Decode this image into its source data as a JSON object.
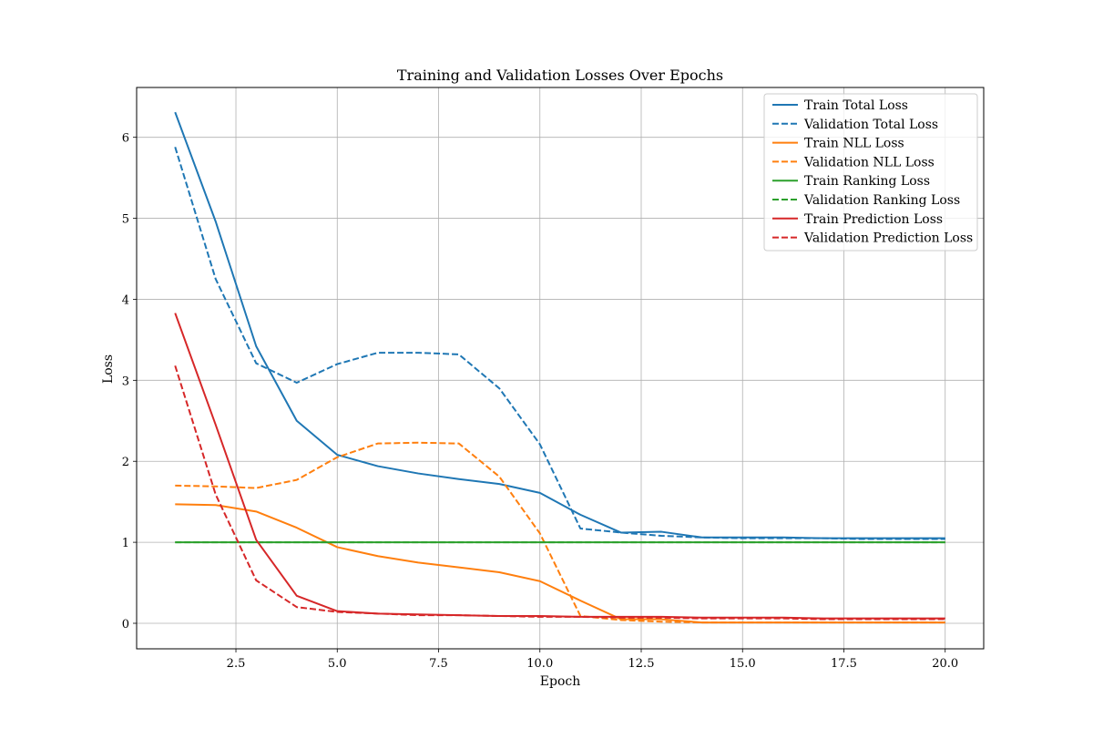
{
  "chart_data": {
    "type": "line",
    "title": "Training and Validation Losses Over Epochs",
    "xlabel": "Epoch",
    "ylabel": "Loss",
    "xlim": [
      0.05,
      20.95
    ],
    "ylim": [
      -0.315,
      6.615
    ],
    "xticks": [
      2.5,
      5.0,
      7.5,
      10.0,
      12.5,
      15.0,
      17.5,
      20.0
    ],
    "xtick_labels": [
      "2.5",
      "5.0",
      "7.5",
      "10.0",
      "12.5",
      "15.0",
      "17.5",
      "20.0"
    ],
    "yticks": [
      0,
      1,
      2,
      3,
      4,
      5,
      6
    ],
    "ytick_labels": [
      "0",
      "1",
      "2",
      "3",
      "4",
      "5",
      "6"
    ],
    "grid": true,
    "legend_position": "top-right",
    "x": [
      1,
      2,
      3,
      4,
      5,
      6,
      7,
      8,
      9,
      10,
      11,
      12,
      13,
      14,
      15,
      16,
      17,
      18,
      19,
      20
    ],
    "series": [
      {
        "name": "Train Total Loss",
        "color": "#1f77b4",
        "style": "solid",
        "values": [
          6.31,
          4.96,
          3.42,
          2.5,
          2.08,
          1.94,
          1.85,
          1.78,
          1.72,
          1.61,
          1.34,
          1.12,
          1.13,
          1.06,
          1.06,
          1.06,
          1.05,
          1.05,
          1.05,
          1.05
        ]
      },
      {
        "name": "Validation Total Loss",
        "color": "#1f77b4",
        "style": "dashed",
        "values": [
          5.88,
          4.25,
          3.21,
          2.97,
          3.2,
          3.34,
          3.34,
          3.32,
          2.9,
          2.21,
          1.17,
          1.12,
          1.08,
          1.06,
          1.05,
          1.05,
          1.05,
          1.04,
          1.04,
          1.04
        ]
      },
      {
        "name": "Train NLL Loss",
        "color": "#ff7f0e",
        "style": "solid",
        "values": [
          1.47,
          1.46,
          1.38,
          1.18,
          0.94,
          0.83,
          0.75,
          0.69,
          0.63,
          0.52,
          0.28,
          0.05,
          0.05,
          0.01,
          0.01,
          0.01,
          0.01,
          0.01,
          0.01,
          0.01
        ]
      },
      {
        "name": "Validation NLL Loss",
        "color": "#ff7f0e",
        "style": "dashed",
        "values": [
          1.7,
          1.69,
          1.67,
          1.77,
          2.05,
          2.22,
          2.23,
          2.22,
          1.81,
          1.11,
          0.09,
          0.04,
          0.02,
          0.01,
          0.01,
          0.01,
          0.01,
          0.01,
          0.01,
          0.01
        ]
      },
      {
        "name": "Train Ranking Loss",
        "color": "#2ca02c",
        "style": "solid",
        "values": [
          1.0,
          1.0,
          1.0,
          1.0,
          1.0,
          1.0,
          1.0,
          1.0,
          1.0,
          1.0,
          1.0,
          1.0,
          1.0,
          1.0,
          1.0,
          1.0,
          1.0,
          1.0,
          1.0,
          1.0
        ]
      },
      {
        "name": "Validation Ranking Loss",
        "color": "#2ca02c",
        "style": "dashed",
        "values": [
          1.0,
          1.0,
          1.0,
          1.0,
          1.0,
          1.0,
          1.0,
          1.0,
          1.0,
          1.0,
          1.0,
          1.0,
          1.0,
          1.0,
          1.0,
          1.0,
          1.0,
          1.0,
          1.0,
          1.0
        ]
      },
      {
        "name": "Train Prediction Loss",
        "color": "#d62728",
        "style": "solid",
        "values": [
          3.83,
          2.45,
          1.03,
          0.34,
          0.15,
          0.12,
          0.11,
          0.1,
          0.09,
          0.09,
          0.08,
          0.08,
          0.08,
          0.07,
          0.07,
          0.07,
          0.06,
          0.06,
          0.06,
          0.06
        ]
      },
      {
        "name": "Validation Prediction Loss",
        "color": "#d62728",
        "style": "dashed",
        "values": [
          3.18,
          1.59,
          0.53,
          0.2,
          0.14,
          0.12,
          0.1,
          0.1,
          0.09,
          0.08,
          0.08,
          0.07,
          0.07,
          0.06,
          0.06,
          0.06,
          0.05,
          0.05,
          0.05,
          0.05
        ]
      }
    ]
  }
}
